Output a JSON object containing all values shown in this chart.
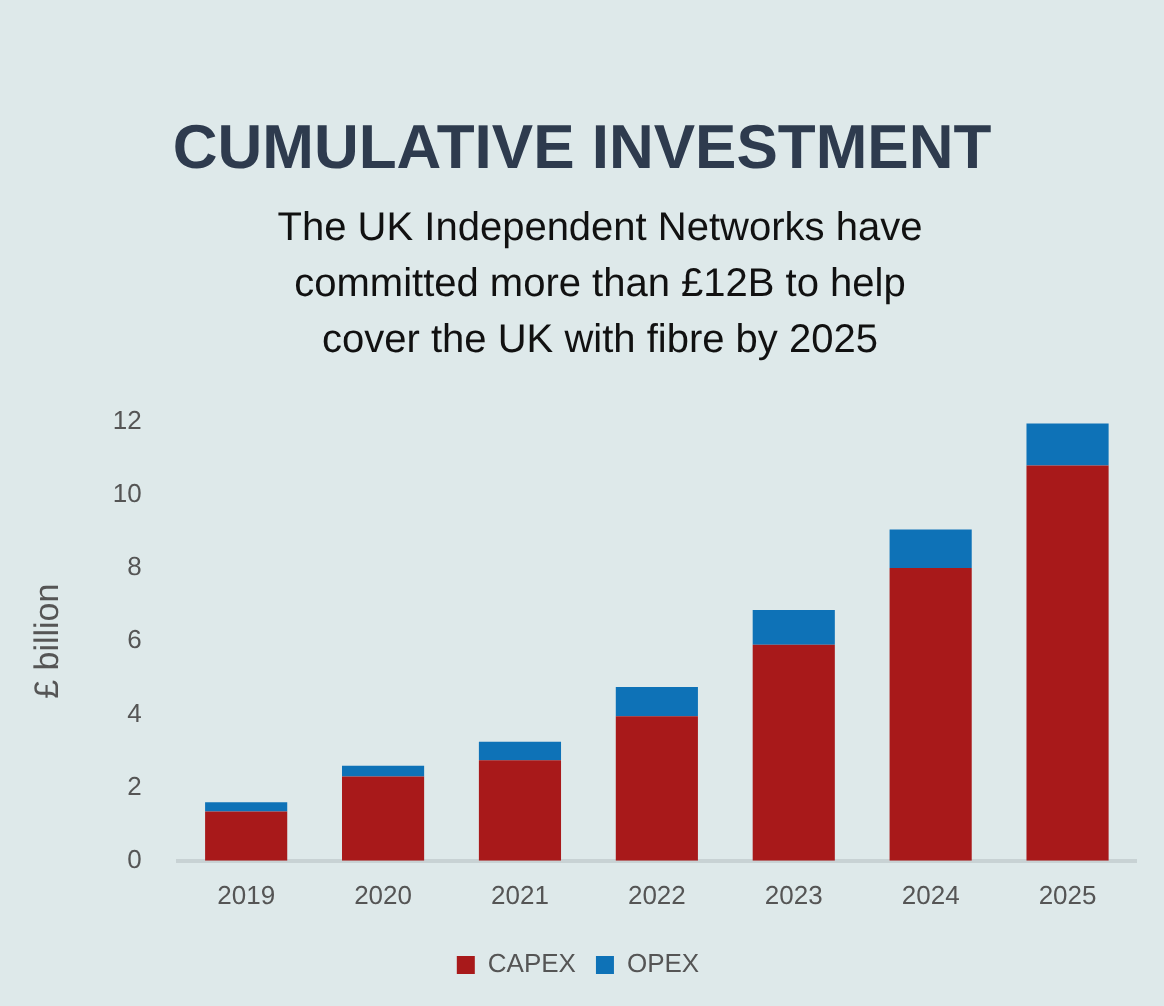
{
  "chart_data": {
    "type": "bar",
    "title": "CUMULATIVE INVESTMENT",
    "subtitle": "The UK Independent Networks have committed more than £12B to help cover the UK with fibre by 2025",
    "ylabel": "£ billion",
    "categories": [
      "2019",
      "2020",
      "2021",
      "2022",
      "2023",
      "2024",
      "2025"
    ],
    "series": [
      {
        "name": "CAPEX",
        "color": "#a8191a",
        "values": [
          1.35,
          2.3,
          2.75,
          3.95,
          5.9,
          8.0,
          10.8
        ]
      },
      {
        "name": "OPEX",
        "color": "#0e72b7",
        "values": [
          0.25,
          0.3,
          0.5,
          0.8,
          0.95,
          1.05,
          1.15
        ]
      }
    ],
    "stacked": true,
    "ylim": [
      0,
      12
    ],
    "yticks": [
      0,
      2,
      4,
      6,
      8,
      10,
      12
    ],
    "grid": false,
    "legend": "bottom"
  }
}
